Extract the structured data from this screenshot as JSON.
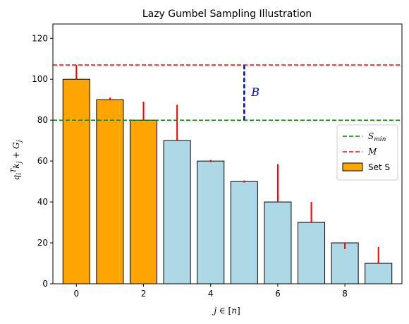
{
  "chart_data": {
    "type": "bar",
    "title": "Lazy Gumbel Sampling Illustration",
    "xlabel": {
      "var": "j",
      "rel": " ∈ [",
      "set": "n",
      "close": "]"
    },
    "ylabel": {
      "q": "q",
      "sub_i": "i",
      "sup_T": "T",
      "k": "k",
      "sub_j": "j",
      "plus": " + ",
      "G": "G",
      "sub_j2": "j"
    },
    "xlim": [
      -0.7,
      9.7
    ],
    "ylim": [
      0,
      127
    ],
    "xticks": [
      0,
      2,
      4,
      6,
      8
    ],
    "yticks": [
      0,
      20,
      40,
      60,
      80,
      100,
      120
    ],
    "categories": [
      0,
      1,
      2,
      3,
      4,
      5,
      6,
      7,
      8,
      9
    ],
    "values": [
      100,
      90,
      80,
      70,
      60,
      50,
      40,
      30,
      20,
      10
    ],
    "in_set_s": [
      true,
      true,
      true,
      false,
      false,
      false,
      false,
      false,
      false,
      false
    ],
    "error_tops": [
      107,
      91,
      89,
      87.5,
      60.5,
      50.5,
      58.5,
      40,
      20,
      18
    ],
    "error_bottoms": [
      100,
      90,
      80,
      70,
      59.5,
      49.5,
      40,
      30,
      17,
      10
    ],
    "s_min": 80,
    "M": 107,
    "B_annotation": {
      "label": "B",
      "x": 5,
      "y_from": 80,
      "y_to": 107
    },
    "colors": {
      "set_s": "#ffa500",
      "other": "#add8e6",
      "bar_edge": "#000000",
      "error": "#ff0000",
      "s_min_line": "#008000",
      "m_line": "#ff0000",
      "b_line": "#0000ff"
    },
    "legend": {
      "placement": "center-right",
      "entries": [
        {
          "kind": "line",
          "color": "#008000",
          "main": "S",
          "sub": "min"
        },
        {
          "kind": "line",
          "color": "#ff0000",
          "main": "M",
          "sub": ""
        },
        {
          "kind": "patch",
          "color": "#ffa500",
          "main": "Set S",
          "sub": ""
        }
      ]
    },
    "grid": false
  }
}
